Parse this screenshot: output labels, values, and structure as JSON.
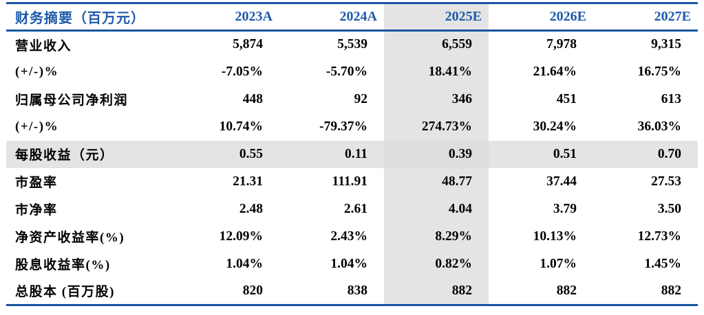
{
  "table": {
    "header": {
      "label": "财务摘要（百万元）",
      "columns": [
        "2023A",
        "2024A",
        "2025E",
        "2026E",
        "2027E"
      ]
    },
    "rows": [
      {
        "label": "营业收入",
        "values": [
          "5,874",
          "5,539",
          "6,559",
          "7,978",
          "9,315"
        ]
      },
      {
        "label": "(+/-)%",
        "values": [
          "-7.05%",
          "-5.70%",
          "18.41%",
          "21.64%",
          "16.75%"
        ]
      },
      {
        "label": "归属母公司净利润",
        "values": [
          "448",
          "92",
          "346",
          "451",
          "613"
        ]
      },
      {
        "label": "(+/-)%",
        "values": [
          "10.74%",
          "-79.37%",
          "274.73%",
          "30.24%",
          "36.03%"
        ]
      },
      {
        "label": "每股收益（元）",
        "values": [
          "0.55",
          "0.11",
          "0.39",
          "0.51",
          "0.70"
        ]
      },
      {
        "label": "市盈率",
        "values": [
          "21.31",
          "111.91",
          "48.77",
          "37.44",
          "27.53"
        ]
      },
      {
        "label": "市净率",
        "values": [
          "2.48",
          "2.61",
          "4.04",
          "3.79",
          "3.50"
        ]
      },
      {
        "label": "净资产收益率(%)",
        "values": [
          "12.09%",
          "2.43%",
          "8.29%",
          "10.13%",
          "12.73%"
        ]
      },
      {
        "label": "股息收益率(%)",
        "values": [
          "1.04%",
          "1.04%",
          "0.82%",
          "1.07%",
          "1.45%"
        ]
      },
      {
        "label": "总股本 (百万股)",
        "values": [
          "820",
          "838",
          "882",
          "882",
          "882"
        ]
      }
    ],
    "highlight_row_label": "每股收益（元）",
    "highlight_column": "2025E",
    "colors": {
      "accent_text": "#1D5AA9",
      "rule": "#1853A2",
      "highlight_bg": "#E4E4E4",
      "highlight_intersect_bg": "#DEDEDE",
      "value_text": "#000000"
    }
  }
}
